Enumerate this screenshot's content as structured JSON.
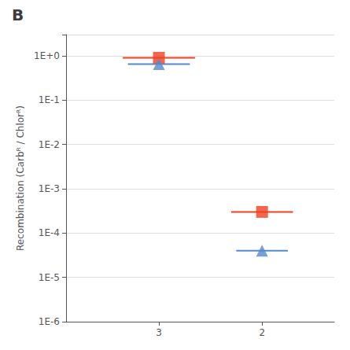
{
  "chart_data": {
    "type": "scatter",
    "title": "B",
    "ylabel": "Recombination (Carbᴿ / Chlorᴿ)",
    "x": [
      3,
      2
    ],
    "series": [
      {
        "color": "#f04020",
        "marker": "square",
        "values": [
          0.9,
          0.0003
        ],
        "xerr": [
          0.35,
          0.3
        ]
      },
      {
        "color": "#5588cc",
        "marker": "triangle",
        "values": [
          0.65,
          4e-05
        ],
        "xerr": [
          0.3,
          0.25
        ]
      }
    ],
    "log": "y",
    "xlim": [
      3.9,
      1.3
    ],
    "xticks": [
      3,
      2
    ],
    "ylim": [
      1e-06,
      3
    ],
    "yticks": [
      {
        "value": 1,
        "label": "1E+0"
      },
      {
        "value": 0.1,
        "label": "1E-1"
      },
      {
        "value": 0.01,
        "label": "1E-2"
      },
      {
        "value": 0.001,
        "label": "1E-3"
      },
      {
        "value": 0.0001,
        "label": "1E-4"
      },
      {
        "value": 1e-05,
        "label": "1E-5"
      },
      {
        "value": 1e-06,
        "label": "1E-6"
      }
    ],
    "grid": "y"
  }
}
